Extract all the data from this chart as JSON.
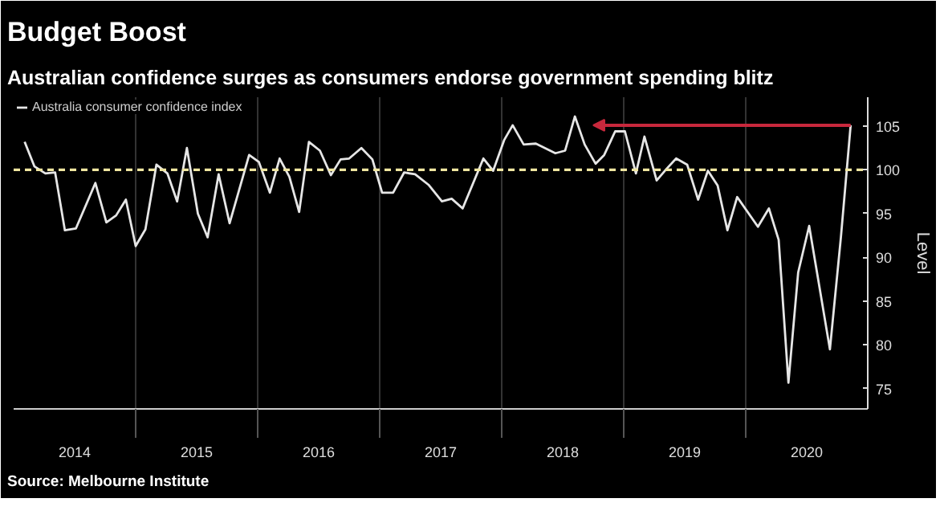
{
  "chart_data": {
    "type": "line",
    "title": "Budget Boost",
    "subtitle": "Australian confidence surges as consumers endorse government spending blitz",
    "ylabel": "Level",
    "annotations": [
      "Source: Melbourne Institute"
    ],
    "x": [
      2014.09,
      2014.17,
      2014.26,
      2014.34,
      2014.42,
      2014.51,
      2014.67,
      2014.76,
      2014.84,
      2014.92,
      2015.0,
      2015.08,
      2015.17,
      2015.26,
      2015.34,
      2015.42,
      2015.51,
      2015.59,
      2015.68,
      2015.77,
      2015.93,
      2016.01,
      2016.1,
      2016.18,
      2016.26,
      2016.34,
      2016.42,
      2016.51,
      2016.6,
      2016.68,
      2016.75,
      2016.85,
      2016.94,
      2017.02,
      2017.11,
      2017.2,
      2017.29,
      2017.4,
      2017.51,
      2017.59,
      2017.68,
      2017.85,
      2017.93,
      2018.02,
      2018.09,
      2018.18,
      2018.28,
      2018.44,
      2018.52,
      2018.6,
      2018.68,
      2018.77,
      2018.84,
      2018.93,
      2019.01,
      2019.1,
      2019.17,
      2019.27,
      2019.35,
      2019.43,
      2019.52,
      2019.61,
      2019.69,
      2019.77,
      2019.85,
      2019.93,
      2020.1,
      2020.19,
      2020.27,
      2020.35,
      2020.43,
      2020.52,
      2020.69,
      2020.78,
      2020.86
    ],
    "series": [
      {
        "name": "Australia consumer confidence index",
        "color": "#e6e6e6",
        "values": [
          103.2,
          100.4,
          99.6,
          99.7,
          93.1,
          93.3,
          98.5,
          94.0,
          94.8,
          96.6,
          91.3,
          93.2,
          100.6,
          99.6,
          96.4,
          102.5,
          95.0,
          92.3,
          99.5,
          93.9,
          101.7,
          100.9,
          97.4,
          101.3,
          99.2,
          95.2,
          103.2,
          102.2,
          99.4,
          101.2,
          101.3,
          102.5,
          101.2,
          97.4,
          97.4,
          99.7,
          99.5,
          98.3,
          96.4,
          96.7,
          95.6,
          101.3,
          99.9,
          103.4,
          105.1,
          102.9,
          103.0,
          101.9,
          102.2,
          106.1,
          102.9,
          100.7,
          101.7,
          104.4,
          104.4,
          99.6,
          103.8,
          98.8,
          100.1,
          101.3,
          100.6,
          96.6,
          99.9,
          98.2,
          93.1,
          96.9,
          93.5,
          95.6,
          92.0,
          75.7,
          88.3,
          93.6,
          79.5,
          92.3,
          105.1
        ]
      }
    ],
    "xlim": [
      2014.0,
      2021.0
    ],
    "xticks": [
      {
        "value": 2014.5,
        "label": "2014"
      },
      {
        "value": 2015.0,
        "label": null
      },
      {
        "value": 2015.5,
        "label": "2015"
      },
      {
        "value": 2016.0,
        "label": null
      },
      {
        "value": 2016.5,
        "label": "2016"
      },
      {
        "value": 2017.0,
        "label": null
      },
      {
        "value": 2017.5,
        "label": "2017"
      },
      {
        "value": 2018.0,
        "label": null
      },
      {
        "value": 2018.5,
        "label": "2018"
      },
      {
        "value": 2019.0,
        "label": null
      },
      {
        "value": 2019.5,
        "label": "2019"
      },
      {
        "value": 2020.0,
        "label": null
      },
      {
        "value": 2020.5,
        "label": "2020"
      }
    ],
    "ylim": [
      72.7,
      108.3
    ],
    "yticks": [
      75,
      80,
      85,
      90,
      95,
      100,
      105
    ],
    "ref_lines": [
      {
        "axis": "y",
        "value": 100,
        "label": null,
        "color": "#f0e6a0",
        "line_style": "dashed"
      }
    ],
    "grid": "x",
    "legend": "top left"
  }
}
